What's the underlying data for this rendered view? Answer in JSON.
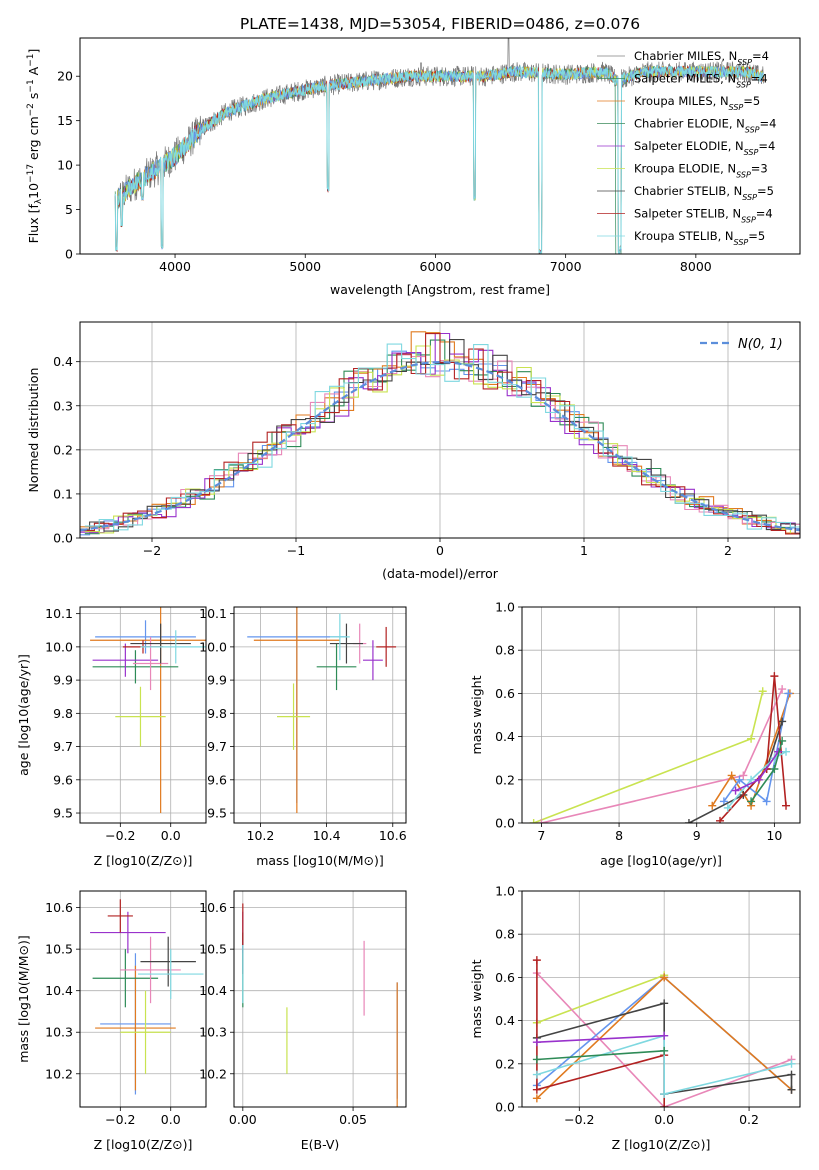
{
  "figure": {
    "title": "PLATE=1438, MJD=53054, FIBERID=0486, z=0.076"
  },
  "colors": {
    "Chabrier MILES": "#6495ed",
    "Salpeter MILES": "#e07a1f",
    "Kroupa MILES": "#2e8b57",
    "Chabrier ELODIE": "#9932cc",
    "Salpeter ELODIE": "#e887b8",
    "Kroupa ELODIE": "#c9e350",
    "Chabrier STELIB": "#444444",
    "Salpeter STELIB": "#b22222",
    "Kroupa STELIB": "#7fd8e0",
    "gauss": "#5b8edb",
    "grid": "#b0b0b0"
  },
  "chart_data": [
    {
      "id": "spectrum",
      "type": "line",
      "xlabel": "wavelength [Angstrom, rest frame]",
      "ylabel_parts": [
        "Flux [f",
        "λ",
        "10",
        "−17",
        " erg cm",
        "−2",
        " s",
        "−1",
        " A",
        "−1",
        "]"
      ],
      "xlim": [
        3270,
        8800
      ],
      "ylim": [
        0,
        24.3
      ],
      "xticks": [
        4000,
        5000,
        6000,
        7000,
        8000
      ],
      "yticks": [
        0,
        5,
        10,
        15,
        20
      ],
      "legend": [
        {
          "pre": "Chabrier MILES, N",
          "sub": "SSP",
          "post": "=4",
          "color": "#808080"
        },
        {
          "pre": "Salpeter MILES, N",
          "sub": "SSP",
          "post": "=4",
          "color": "#3a8a5a"
        },
        {
          "pre": "Kroupa MILES, N",
          "sub": "SSP",
          "post": "=5",
          "color": "#e07a1f"
        },
        {
          "pre": "Chabrier ELODIE, N",
          "sub": "SSP",
          "post": "=4",
          "color": "#3a8a5a"
        },
        {
          "pre": "Salpeter ELODIE, N",
          "sub": "SSP",
          "post": "=4",
          "color": "#9932cc"
        },
        {
          "pre": "Kroupa ELODIE, N",
          "sub": "SSP",
          "post": "=3",
          "color": "#c9e350"
        },
        {
          "pre": "Chabrier STELIB, N",
          "sub": "SSP",
          "post": "=5",
          "color": "#444444"
        },
        {
          "pre": "Salpeter STELIB, N",
          "sub": "SSP",
          "post": "=4",
          "color": "#b22222"
        },
        {
          "pre": "Kroupa STELIB, N",
          "sub": "SSP",
          "post": "=5",
          "color": "#7fd8e0"
        }
      ],
      "continuum_knots": [
        [
          3540,
          6
        ],
        [
          3700,
          8
        ],
        [
          3900,
          10
        ],
        [
          4000,
          11
        ],
        [
          4200,
          14
        ],
        [
          4400,
          16
        ],
        [
          4700,
          17.5
        ],
        [
          5000,
          18.5
        ],
        [
          5200,
          19
        ],
        [
          5500,
          19.5
        ],
        [
          5800,
          20
        ],
        [
          6100,
          20
        ],
        [
          6400,
          20
        ],
        [
          6600,
          20.5
        ],
        [
          7000,
          20.2
        ],
        [
          7300,
          20.5
        ],
        [
          7400,
          19.5
        ],
        [
          7600,
          20.5
        ],
        [
          8000,
          20.5
        ],
        [
          8400,
          20.5
        ],
        [
          8500,
          20
        ]
      ],
      "dips": [
        [
          3550,
          0.3
        ],
        [
          3590,
          3
        ],
        [
          3750,
          6
        ],
        [
          3900,
          0.5
        ],
        [
          5175,
          7
        ],
        [
          6300,
          6
        ],
        [
          6800,
          0
        ],
        [
          6810,
          0
        ],
        [
          7410,
          0
        ],
        [
          7420,
          0.4
        ]
      ],
      "spikes": [
        [
          6560,
          24.3
        ],
        [
          5890,
          21.5
        ]
      ]
    },
    {
      "id": "residuals",
      "type": "histogram",
      "xlabel": "(data-model)/error",
      "ylabel": "Normed distribution",
      "xlim": [
        -2.5,
        2.5
      ],
      "ylim": [
        0,
        0.49
      ],
      "xticks": [
        -2,
        -1,
        0,
        1,
        2
      ],
      "yticks": [
        0.0,
        0.1,
        0.2,
        0.3,
        0.4
      ],
      "legend_label": "N(0, 1)",
      "bin_width": 0.1,
      "series_names": [
        "Chabrier MILES",
        "Salpeter MILES",
        "Kroupa MILES",
        "Chabrier ELODIE",
        "Salpeter ELODIE",
        "Kroupa ELODIE",
        "Chabrier STELIB",
        "Salpeter STELIB",
        "Kroupa STELIB"
      ]
    },
    {
      "id": "age-Z",
      "type": "scatter",
      "xlabel": "Z [log10(Z/Z⊙)]",
      "ylabel": "age [log10(age/yr)]",
      "xlim": [
        -0.36,
        0.14
      ],
      "ylim": [
        9.47,
        10.12
      ],
      "xticks": [
        -0.2,
        0.0
      ],
      "yticks": [
        9.5,
        9.6,
        9.7,
        9.8,
        9.9,
        10.0,
        10.1
      ],
      "points": [
        {
          "name": "Chabrier MILES",
          "x": -0.1,
          "xerr": 0.2,
          "y": 10.03,
          "yerr": 0.05
        },
        {
          "name": "Salpeter MILES",
          "x": -0.04,
          "xerr": 0.28,
          "y": 10.02,
          "yerr": 0.52
        },
        {
          "name": "Kroupa MILES",
          "x": -0.14,
          "xerr": 0.17,
          "y": 9.94,
          "yerr": 0.05
        },
        {
          "name": "Chabrier ELODIE",
          "x": -0.18,
          "xerr": 0.13,
          "y": 9.96,
          "yerr": 0.05
        },
        {
          "name": "Salpeter ELODIE",
          "x": -0.08,
          "xerr": 0.07,
          "y": 9.95,
          "yerr": 0.08
        },
        {
          "name": "Kroupa ELODIE",
          "x": -0.12,
          "xerr": 0.1,
          "y": 9.79,
          "yerr": 0.09
        },
        {
          "name": "Chabrier STELIB",
          "x": -0.04,
          "xerr": 0.12,
          "y": 10.01,
          "yerr": 0.06
        },
        {
          "name": "Salpeter STELIB",
          "x": -0.11,
          "xerr": 0.08,
          "y": 10.0,
          "yerr": 0.02
        },
        {
          "name": "Kroupa STELIB",
          "x": 0.02,
          "xerr": 0.14,
          "y": 10.0,
          "yerr": 0.05
        }
      ]
    },
    {
      "id": "age-mass",
      "type": "scatter",
      "xlabel": "mass [log10(M/M⊙)]",
      "ylabel": "",
      "xlim": [
        10.12,
        10.64
      ],
      "ylim": [
        9.47,
        10.12
      ],
      "xticks": [
        10.2,
        10.4,
        10.6
      ],
      "yticks": [
        9.5,
        9.6,
        9.7,
        9.8,
        9.9,
        10.0,
        10.1
      ],
      "points": [
        {
          "name": "Chabrier MILES",
          "x": 10.31,
          "xerr": 0.15,
          "y": 10.03,
          "yerr": 0.5
        },
        {
          "name": "Salpeter MILES",
          "x": 10.31,
          "xerr": 0.13,
          "y": 10.02,
          "yerr": 0.52
        },
        {
          "name": "Kroupa MILES",
          "x": 10.43,
          "xerr": 0.06,
          "y": 9.94,
          "yerr": 0.07
        },
        {
          "name": "Chabrier ELODIE",
          "x": 10.54,
          "xerr": 0.03,
          "y": 9.96,
          "yerr": 0.06
        },
        {
          "name": "Salpeter ELODIE",
          "x": 10.5,
          "xerr": 0.02,
          "y": 10.01,
          "yerr": 0.06
        },
        {
          "name": "Kroupa ELODIE",
          "x": 10.3,
          "xerr": 0.05,
          "y": 9.79,
          "yerr": 0.1
        },
        {
          "name": "Chabrier STELIB",
          "x": 10.46,
          "xerr": 0.05,
          "y": 10.01,
          "yerr": 0.06
        },
        {
          "name": "Salpeter STELIB",
          "x": 10.58,
          "xerr": 0.03,
          "y": 10.0,
          "yerr": 0.06
        },
        {
          "name": "Kroupa STELIB",
          "x": 10.44,
          "xerr": 0.03,
          "y": 10.03,
          "yerr": 0.07
        }
      ]
    },
    {
      "id": "weight-age",
      "type": "line",
      "xlabel": "age [log10(age/yr)]",
      "ylabel": "mass weight",
      "xlim": [
        6.75,
        10.33
      ],
      "ylim": [
        0,
        1.0
      ],
      "xticks": [
        7,
        8,
        9,
        10
      ],
      "yticks": [
        0.0,
        0.2,
        0.4,
        0.6,
        0.8,
        1.0
      ],
      "series": [
        {
          "name": "Kroupa ELODIE",
          "points": [
            [
              6.9,
              0.0
            ],
            [
              9.7,
              0.39
            ],
            [
              9.85,
              0.61
            ]
          ]
        },
        {
          "name": "Salpeter ELODIE",
          "points": [
            [
              7.0,
              0.0
            ],
            [
              9.6,
              0.22
            ],
            [
              10.1,
              0.62
            ]
          ]
        },
        {
          "name": "Salpeter MILES",
          "points": [
            [
              9.2,
              0.08
            ],
            [
              9.45,
              0.22
            ],
            [
              9.7,
              0.08
            ],
            [
              10.2,
              0.6
            ]
          ]
        },
        {
          "name": "Chabrier MILES",
          "points": [
            [
              9.35,
              0.1
            ],
            [
              9.55,
              0.2
            ],
            [
              9.9,
              0.1
            ],
            [
              10.18,
              0.6
            ]
          ]
        },
        {
          "name": "Chabrier STELIB",
          "points": [
            [
              8.9,
              0.0
            ],
            [
              9.6,
              0.13
            ],
            [
              9.9,
              0.25
            ],
            [
              10.1,
              0.47
            ]
          ]
        },
        {
          "name": "Salpeter STELIB",
          "points": [
            [
              9.3,
              0.01
            ],
            [
              9.9,
              0.25
            ],
            [
              10.0,
              0.68
            ],
            [
              10.15,
              0.08
            ]
          ]
        },
        {
          "name": "Kroupa STELIB",
          "points": [
            [
              9.4,
              0.07
            ],
            [
              9.7,
              0.2
            ],
            [
              10.0,
              0.3
            ],
            [
              10.15,
              0.33
            ]
          ]
        },
        {
          "name": "Chabrier ELODIE",
          "points": [
            [
              9.5,
              0.15
            ],
            [
              9.8,
              0.2
            ],
            [
              10.05,
              0.33
            ]
          ]
        },
        {
          "name": "Kroupa MILES",
          "points": [
            [
              9.7,
              0.1
            ],
            [
              10.0,
              0.25
            ],
            [
              10.1,
              0.38
            ]
          ]
        }
      ]
    },
    {
      "id": "mass-Z",
      "type": "scatter",
      "xlabel": "Z [log10(Z/Z⊙)]",
      "ylabel": "mass [log10(M/M⊙)]",
      "xlim": [
        -0.36,
        0.14
      ],
      "ylim": [
        10.12,
        10.64
      ],
      "xticks": [
        -0.2,
        0.0
      ],
      "yticks": [
        10.2,
        10.3,
        10.4,
        10.5,
        10.6
      ],
      "points": [
        {
          "name": "Chabrier MILES",
          "x": -0.14,
          "xerr": 0.14,
          "y": 10.32,
          "yerr": 0.17
        },
        {
          "name": "Salpeter MILES",
          "x": -0.14,
          "xerr": 0.16,
          "y": 10.31,
          "yerr": 0.15
        },
        {
          "name": "Kroupa MILES",
          "x": -0.18,
          "xerr": 0.13,
          "y": 10.43,
          "yerr": 0.07
        },
        {
          "name": "Chabrier ELODIE",
          "x": -0.17,
          "xerr": 0.15,
          "y": 10.54,
          "yerr": 0.05
        },
        {
          "name": "Salpeter ELODIE",
          "x": -0.08,
          "xerr": 0.12,
          "y": 10.45,
          "yerr": 0.08
        },
        {
          "name": "Kroupa ELODIE",
          "x": -0.1,
          "xerr": 0.1,
          "y": 10.3,
          "yerr": 0.1
        },
        {
          "name": "Chabrier STELIB",
          "x": -0.01,
          "xerr": 0.11,
          "y": 10.47,
          "yerr": 0.06
        },
        {
          "name": "Salpeter STELIB",
          "x": -0.2,
          "xerr": 0.05,
          "y": 10.58,
          "yerr": 0.04
        },
        {
          "name": "Kroupa STELIB",
          "x": 0.0,
          "xerr": 0.13,
          "y": 10.44,
          "yerr": 0.06
        }
      ]
    },
    {
      "id": "mass-EBV",
      "type": "scatter",
      "xlabel": "E(B-V)",
      "ylabel": "",
      "xlim": [
        -0.004,
        0.074
      ],
      "ylim": [
        10.12,
        10.64
      ],
      "xticks": [
        0.0,
        0.05
      ],
      "yticks": [
        10.2,
        10.3,
        10.4,
        10.5,
        10.6
      ],
      "points": [
        {
          "name": "Chabrier MILES",
          "x": 0.07,
          "xerr": 0,
          "y": 10.28,
          "yerr": 0.14
        },
        {
          "name": "Salpeter MILES",
          "x": 0.07,
          "xerr": 0,
          "y": 10.27,
          "yerr": 0.15
        },
        {
          "name": "Kroupa MILES",
          "x": 0.0,
          "xerr": 0,
          "y": 10.43,
          "yerr": 0.07
        },
        {
          "name": "Chabrier ELODIE",
          "x": 0.0,
          "xerr": 0,
          "y": 10.54,
          "yerr": 0.05
        },
        {
          "name": "Salpeter ELODIE",
          "x": 0.055,
          "xerr": 0,
          "y": 10.43,
          "yerr": 0.09
        },
        {
          "name": "Kroupa ELODIE",
          "x": 0.02,
          "xerr": 0,
          "y": 10.28,
          "yerr": 0.08
        },
        {
          "name": "Chabrier STELIB",
          "x": 0.0,
          "xerr": 0,
          "y": 10.49,
          "yerr": 0.05
        },
        {
          "name": "Salpeter STELIB",
          "x": 0.0,
          "xerr": 0,
          "y": 10.56,
          "yerr": 0.05
        },
        {
          "name": "Kroupa STELIB",
          "x": 0.0,
          "xerr": 0,
          "y": 10.44,
          "yerr": 0.07
        }
      ]
    },
    {
      "id": "weight-Z",
      "type": "line",
      "xlabel": "Z [log10(Z/Z⊙)]",
      "ylabel": "mass weight",
      "xlim": [
        -0.335,
        0.32
      ],
      "ylim": [
        0,
        1.0
      ],
      "xticks": [
        -0.2,
        0.0,
        0.2
      ],
      "yticks": [
        0.0,
        0.2,
        0.4,
        0.6,
        0.8,
        1.0
      ],
      "series": [
        {
          "name": "Kroupa ELODIE",
          "points": [
            [
              -0.3,
              0.39
            ],
            [
              0.0,
              0.61
            ]
          ]
        },
        {
          "name": "Salpeter ELODIE",
          "points": [
            [
              -0.3,
              0.62
            ],
            [
              0.0,
              0.0
            ],
            [
              0.3,
              0.22
            ]
          ]
        },
        {
          "name": "Chabrier MILES",
          "points": [
            [
              -0.3,
              0.1
            ],
            [
              0.0,
              0.6
            ],
            [
              0.3,
              0.08
            ]
          ]
        },
        {
          "name": "Salpeter MILES",
          "points": [
            [
              -0.3,
              0.04
            ],
            [
              0.0,
              0.6
            ],
            [
              0.3,
              0.08
            ]
          ]
        },
        {
          "name": "Chabrier STELIB",
          "points": [
            [
              -0.3,
              0.32
            ],
            [
              0.0,
              0.48
            ],
            [
              0.0,
              0.06
            ],
            [
              0.3,
              0.15
            ],
            [
              0.3,
              0.08
            ]
          ]
        },
        {
          "name": "Salpeter STELIB",
          "points": [
            [
              -0.3,
              0.68
            ],
            [
              -0.3,
              0.08
            ],
            [
              0.0,
              0.24
            ],
            [
              0.0,
              0.0
            ]
          ]
        },
        {
          "name": "Kroupa STELIB",
          "points": [
            [
              -0.3,
              0.15
            ],
            [
              0.0,
              0.33
            ],
            [
              0.0,
              0.06
            ],
            [
              0.3,
              0.2
            ]
          ]
        },
        {
          "name": "Chabrier ELODIE",
          "points": [
            [
              -0.3,
              0.3
            ],
            [
              0.0,
              0.33
            ]
          ]
        },
        {
          "name": "Kroupa MILES",
          "points": [
            [
              -0.3,
              0.22
            ],
            [
              0.0,
              0.26
            ]
          ]
        }
      ]
    }
  ]
}
